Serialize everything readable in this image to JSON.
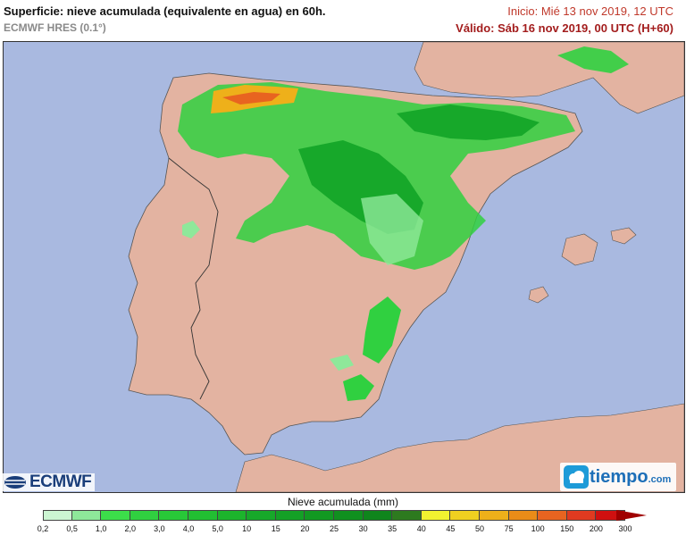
{
  "header": {
    "title": "Superficie: nieve acumulada (equivalente en agua) en 60h.",
    "subtitle": "ECMWF HRES (0.1°)",
    "init": "Inicio: Mié 13 nov 2019, 12 UTC",
    "valid": "Válido: Sáb 16 nov 2019, 00 UTC (H+60)"
  },
  "map": {
    "colors": {
      "sea": "#a9b9e0",
      "land": "#e3b3a1",
      "border": "#333333"
    }
  },
  "logos": {
    "ecmwf": "ECMWF",
    "tiempo": "tiempo",
    "tiempo_domain": ".com",
    "ecmwf_icon": "ecmwf-globe-icon",
    "tiempo_icon": "tiempo-cloud-icon"
  },
  "legend": {
    "title": "Nieve acumulada (mm)",
    "ticks": [
      "0,2",
      "0,5",
      "1,0",
      "2,0",
      "3,0",
      "4,0",
      "5,0",
      "10",
      "15",
      "20",
      "25",
      "30",
      "35",
      "40",
      "45",
      "50",
      "75",
      "100",
      "150",
      "200",
      "300"
    ],
    "colors": [
      "#ccf5d2",
      "#8ee89a",
      "#3cde4a",
      "#30d040",
      "#28c838",
      "#22bf32",
      "#1cb42c",
      "#17a82a",
      "#14a026",
      "#129922",
      "#10901f",
      "#0f851c",
      "#2d7a1f",
      "#f2f230",
      "#f0d020",
      "#eeb01a",
      "#ea8c18",
      "#e86420",
      "#e03a20",
      "#d01010",
      "#a00000"
    ]
  }
}
